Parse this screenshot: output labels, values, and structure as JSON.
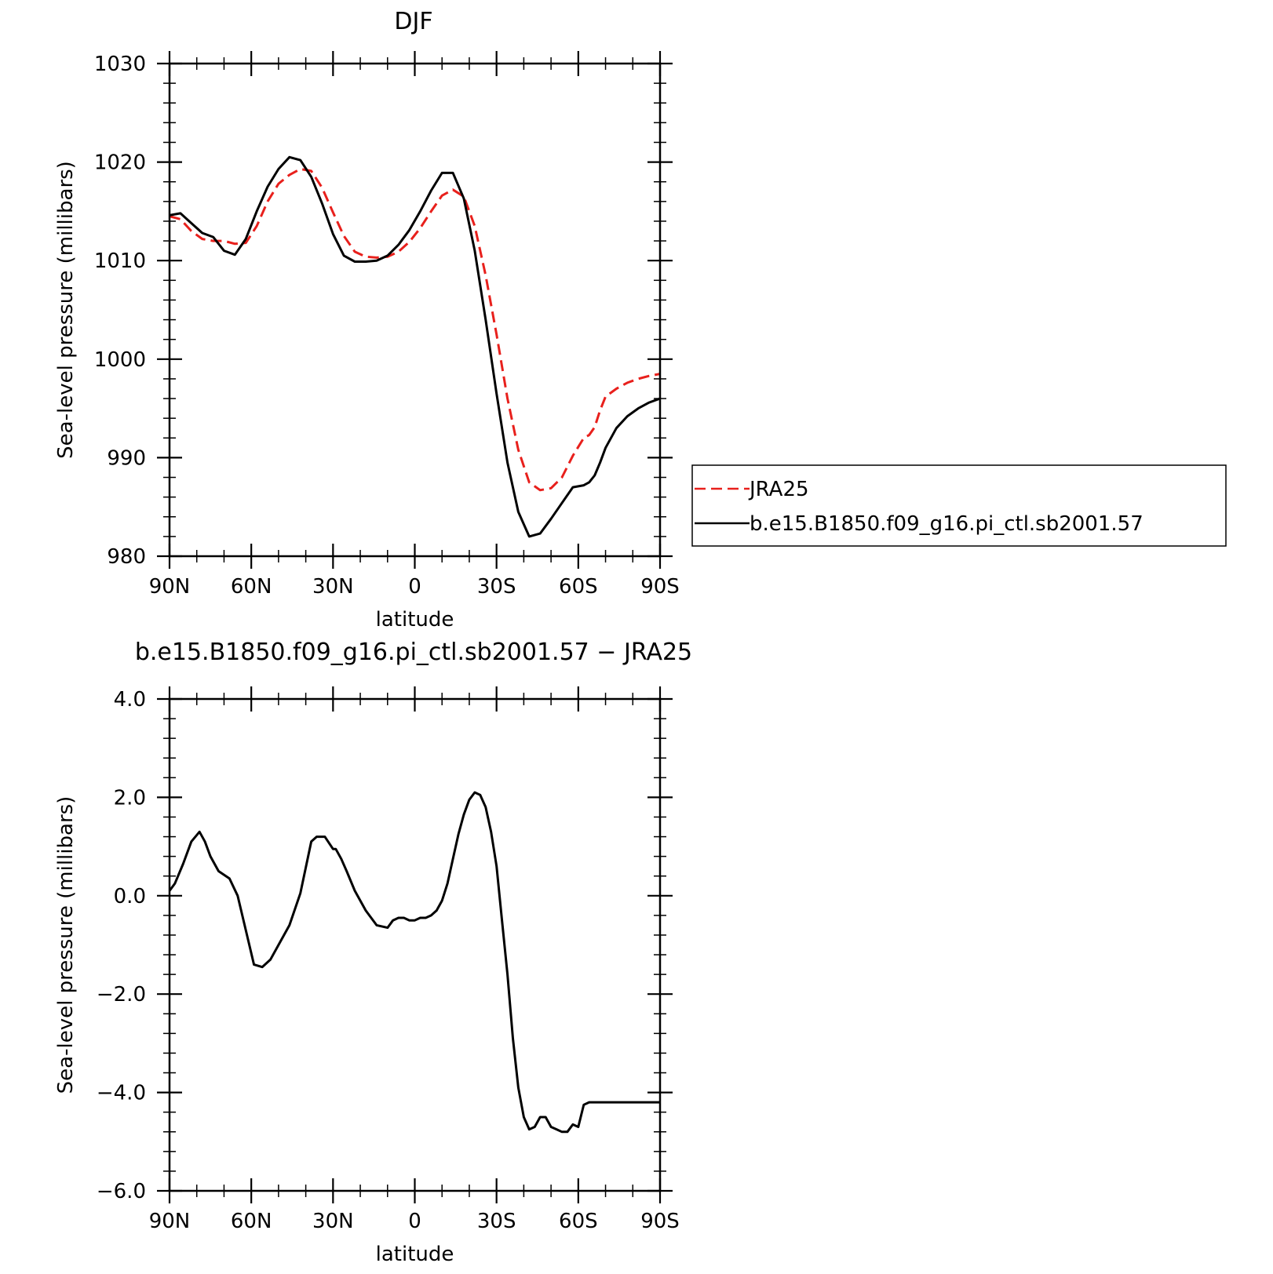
{
  "chart_data": [
    {
      "type": "line",
      "title": "DJF",
      "xlabel": "latitude",
      "ylabel": "Sea-level pressure (millibars)",
      "xlim": [
        90,
        -90
      ],
      "ylim": [
        980,
        1030
      ],
      "xticks": [
        90,
        60,
        30,
        0,
        -30,
        -60,
        -90
      ],
      "xtick_labels": [
        "90N",
        "60N",
        "30N",
        "0",
        "30S",
        "60S",
        "90S"
      ],
      "yticks": [
        980,
        990,
        1000,
        1010,
        1020,
        1030
      ],
      "ytick_labels": [
        "980",
        "990",
        "1000",
        "1010",
        "1020",
        "1030"
      ],
      "legend_position": "right",
      "series": [
        {
          "name": "JRA25",
          "color": "#e8201c",
          "style": "dashed",
          "x": [
            90,
            86,
            82,
            78,
            74,
            70,
            66,
            62,
            58,
            54,
            50,
            46,
            42,
            38,
            34,
            30,
            26,
            22,
            18,
            14,
            10,
            6,
            2,
            -2,
            -6,
            -10,
            -14,
            -18,
            -22,
            -26,
            -30,
            -34,
            -38,
            -42,
            -46,
            -50,
            -54,
            -58,
            -62,
            -64,
            -66,
            -68,
            -70,
            -74,
            -78,
            -82,
            -86,
            -90
          ],
          "y": [
            1014.5,
            1014.2,
            1013.0,
            1012.2,
            1012.0,
            1012.0,
            1011.7,
            1011.8,
            1013.5,
            1016.0,
            1017.8,
            1018.7,
            1019.3,
            1019.1,
            1017.4,
            1014.9,
            1012.5,
            1010.9,
            1010.4,
            1010.3,
            1010.4,
            1010.9,
            1011.9,
            1013.3,
            1015.0,
            1016.6,
            1017.2,
            1016.5,
            1013.5,
            1008.5,
            1002.5,
            996.0,
            990.8,
            987.5,
            986.7,
            986.9,
            988.0,
            990.2,
            992.0,
            992.3,
            993.1,
            994.8,
            996.2,
            997.0,
            997.6,
            998.0,
            998.3,
            998.5
          ],
          "y_note_removed": true
        },
        {
          "name": "b.e15.B1850.f09_g16.pi_ctl.sb2001.57",
          "color": "#000000",
          "style": "solid",
          "x": [
            90,
            86,
            82,
            78,
            74,
            70,
            66,
            62,
            58,
            54,
            50,
            46,
            42,
            38,
            34,
            30,
            26,
            22,
            18,
            14,
            10,
            6,
            2,
            -2,
            -6,
            -10,
            -14,
            -18,
            -22,
            -26,
            -30,
            -34,
            -38,
            -42,
            -46,
            -50,
            -54,
            -58,
            -62,
            -64,
            -66,
            -68,
            -70,
            -74,
            -78,
            -82,
            -86,
            -90
          ],
          "y": [
            1014.6,
            1014.8,
            1013.8,
            1012.8,
            1012.4,
            1011.0,
            1010.6,
            1012.2,
            1015.0,
            1017.5,
            1019.3,
            1020.5,
            1020.2,
            1018.5,
            1015.8,
            1012.7,
            1010.5,
            1009.9,
            1009.9,
            1010.0,
            1010.5,
            1011.6,
            1013.1,
            1015.0,
            1017.1,
            1018.9,
            1018.9,
            1016.3,
            1011.0,
            1004.0,
            996.5,
            989.5,
            984.5,
            982.0,
            982.3,
            983.8,
            985.4,
            987.0,
            987.2,
            987.5,
            988.2,
            989.5,
            991.0,
            993.0,
            994.2,
            995.0,
            995.6,
            996.0
          ]
        }
      ]
    },
    {
      "type": "line",
      "title": "b.e15.B1850.f09_g16.pi_ctl.sb2001.57 − JRA25",
      "xlabel": "latitude",
      "ylabel": "Sea-level pressure (millibars)",
      "xlim": [
        90,
        -90
      ],
      "ylim": [
        -6,
        4
      ],
      "xticks": [
        90,
        60,
        30,
        0,
        -30,
        -60,
        -90
      ],
      "xtick_labels": [
        "90N",
        "60N",
        "30N",
        "0",
        "30S",
        "60S",
        "90S"
      ],
      "yticks": [
        -6,
        -4,
        -2,
        0,
        2,
        4
      ],
      "ytick_labels": [
        "−6.0",
        "−4.0",
        "−2.0",
        "0.0",
        "2.0",
        "4.0"
      ],
      "series": [
        {
          "color": "#000000",
          "style": "solid",
          "x": [
            90,
            88,
            85,
            82,
            79,
            77,
            75,
            72,
            68,
            65,
            62,
            59,
            56,
            53,
            50,
            46,
            42,
            38,
            36,
            33,
            30,
            29,
            27,
            25,
            22,
            18,
            14,
            10,
            8,
            6,
            4,
            2,
            0,
            -2,
            -4,
            -6,
            -8,
            -10,
            -12,
            -14,
            -16,
            -18,
            -20,
            -22,
            -24,
            -26,
            -28,
            -30,
            -32,
            -34,
            -36,
            -38,
            -40,
            -42,
            -44,
            -46,
            -48,
            -50,
            -52,
            -54,
            -56,
            -58,
            -60,
            -62,
            -64,
            -66,
            -68,
            -70,
            -72,
            -74,
            -76,
            -78,
            -80,
            -82,
            -84,
            -86,
            -88,
            -90
          ],
          "y": [
            0.1,
            0.25,
            0.65,
            1.1,
            1.3,
            1.1,
            0.8,
            0.5,
            0.35,
            0.0,
            -0.7,
            -1.4,
            -1.45,
            -1.3,
            -1.0,
            -0.6,
            0.05,
            1.1,
            1.2,
            1.2,
            0.95,
            0.95,
            0.75,
            0.5,
            0.1,
            -0.3,
            -0.6,
            -0.65,
            -0.5,
            -0.45,
            -0.45,
            -0.5,
            -0.5,
            -0.45,
            -0.45,
            -0.4,
            -0.3,
            -0.1,
            0.25,
            0.75,
            1.25,
            1.65,
            1.95,
            2.1,
            2.05,
            1.8,
            1.3,
            0.6,
            -0.5,
            -1.6,
            -2.9,
            -3.9,
            -4.5,
            -4.75,
            -4.7,
            -4.5,
            -4.5,
            -4.7,
            -4.75,
            -4.8,
            -4.8,
            -4.65,
            -4.7,
            -4.25,
            -4.2,
            -4.2,
            -4.2,
            -4.2,
            -4.2,
            -4.2,
            -4.2,
            -4.2,
            -4.2,
            -4.2,
            -4.2,
            -4.2,
            -4.2,
            -4.2
          ]
        }
      ]
    }
  ]
}
